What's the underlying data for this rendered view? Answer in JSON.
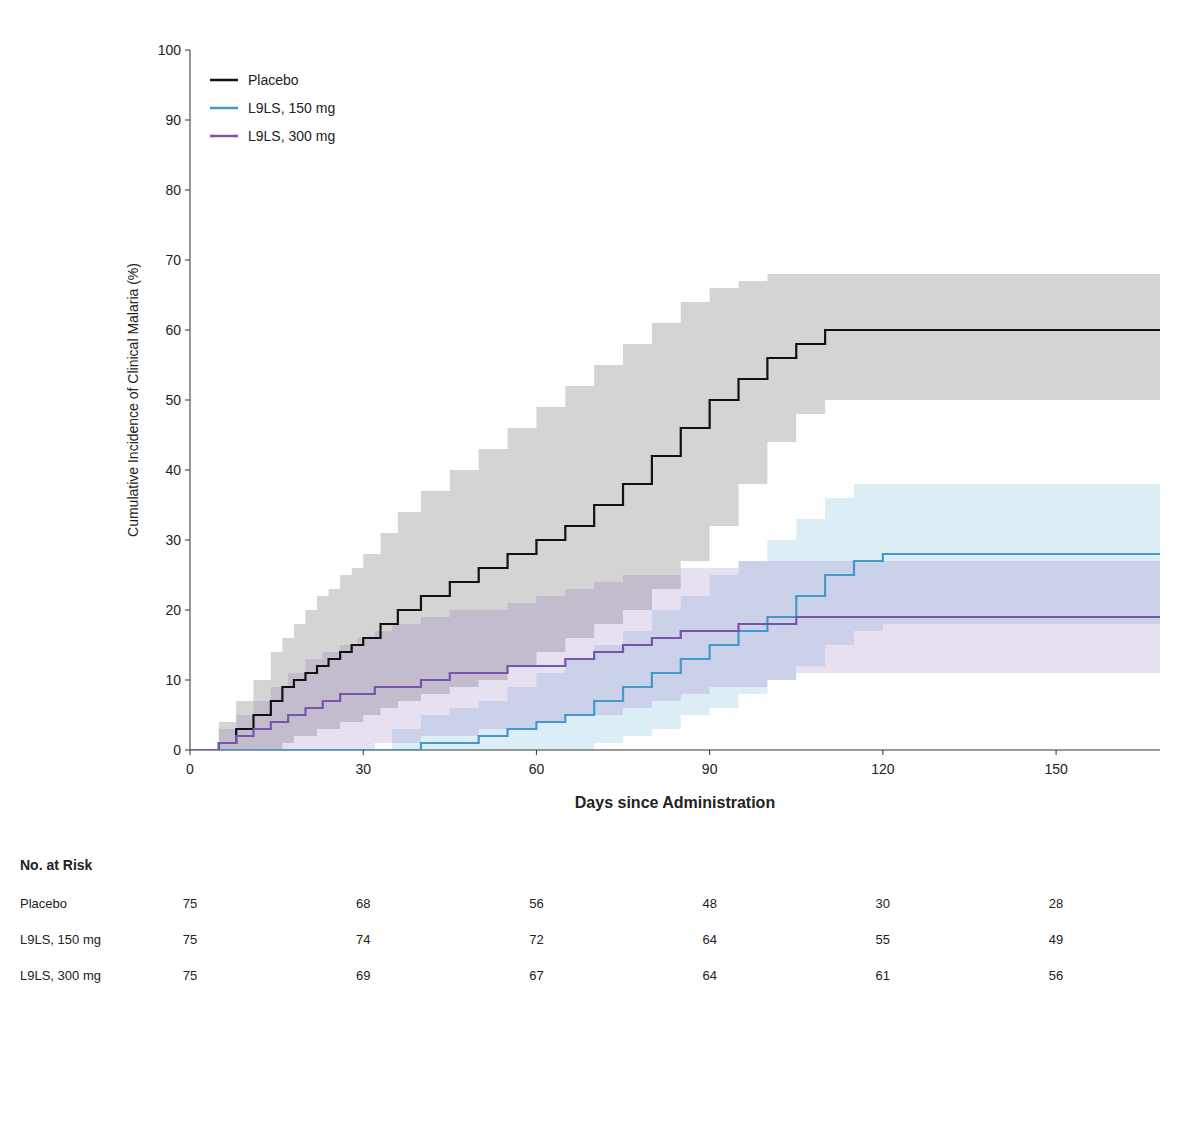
{
  "chart_data": {
    "type": "step",
    "xlabel": "Days since Administration",
    "ylabel": "Cumulative Incidence of Clinical Malaria (%)",
    "xlim": [
      0,
      168
    ],
    "ylim": [
      0,
      100
    ],
    "xticks": [
      0,
      30,
      60,
      90,
      120,
      150
    ],
    "yticks": [
      0,
      10,
      20,
      30,
      40,
      50,
      60,
      70,
      80,
      90,
      100
    ],
    "grid": false,
    "legend": "upper left",
    "series": [
      {
        "name": "Placebo",
        "color": "#111111",
        "x": [
          0,
          5,
          8,
          11,
          14,
          16,
          18,
          20,
          22,
          24,
          26,
          28,
          30,
          33,
          36,
          40,
          45,
          50,
          55,
          60,
          65,
          70,
          75,
          80,
          85,
          90,
          95,
          100,
          105,
          110,
          115,
          120,
          168
        ],
        "values": [
          0,
          1,
          3,
          5,
          7,
          9,
          10,
          11,
          12,
          13,
          14,
          15,
          16,
          18,
          20,
          22,
          24,
          26,
          28,
          30,
          32,
          35,
          38,
          42,
          46,
          50,
          53,
          56,
          58,
          60,
          60,
          60,
          60
        ],
        "upper": [
          0,
          4,
          7,
          10,
          14,
          16,
          18,
          20,
          22,
          23,
          25,
          26,
          28,
          31,
          34,
          37,
          40,
          43,
          46,
          49,
          52,
          55,
          58,
          61,
          64,
          66,
          67,
          68,
          68,
          68,
          68,
          68,
          68
        ],
        "lower": [
          0,
          0,
          0,
          0,
          0,
          1,
          2,
          2,
          3,
          3,
          4,
          4,
          5,
          6,
          7,
          8,
          9,
          10,
          12,
          14,
          16,
          18,
          20,
          23,
          27,
          32,
          38,
          44,
          48,
          50,
          50,
          50,
          48
        ]
      },
      {
        "name": "L9LS, 150 mg",
        "color": "#4499cc",
        "x": [
          0,
          30,
          35,
          40,
          45,
          50,
          55,
          60,
          65,
          70,
          75,
          80,
          85,
          90,
          95,
          100,
          105,
          110,
          115,
          120,
          168
        ],
        "values": [
          0,
          0,
          0,
          1,
          1,
          2,
          3,
          4,
          5,
          7,
          9,
          11,
          13,
          15,
          17,
          19,
          22,
          25,
          27,
          28,
          28
        ],
        "upper": [
          0,
          0,
          3,
          5,
          6,
          7,
          9,
          11,
          13,
          15,
          17,
          20,
          22,
          25,
          27,
          30,
          33,
          36,
          38,
          38,
          38
        ],
        "lower": [
          0,
          0,
          0,
          0,
          0,
          0,
          0,
          0,
          0,
          1,
          2,
          3,
          5,
          6,
          8,
          10,
          12,
          15,
          17,
          18,
          18
        ]
      },
      {
        "name": "L9LS, 300 mg",
        "color": "#7755aa",
        "x": [
          0,
          5,
          8,
          11,
          14,
          17,
          20,
          23,
          26,
          29,
          32,
          35,
          40,
          45,
          50,
          55,
          60,
          65,
          70,
          75,
          80,
          85,
          90,
          95,
          100,
          105,
          110,
          115,
          120,
          168
        ],
        "values": [
          0,
          1,
          2,
          3,
          4,
          5,
          6,
          7,
          8,
          8,
          9,
          9,
          10,
          11,
          11,
          12,
          12,
          13,
          14,
          15,
          16,
          17,
          17,
          18,
          18,
          19,
          19,
          19,
          19,
          19
        ],
        "upper": [
          0,
          3,
          5,
          7,
          9,
          11,
          13,
          14,
          15,
          16,
          17,
          18,
          19,
          20,
          20,
          21,
          22,
          23,
          24,
          25,
          25,
          26,
          26,
          27,
          27,
          27,
          27,
          27,
          27,
          27
        ],
        "lower": [
          0,
          0,
          0,
          0,
          0,
          0,
          0,
          0,
          0,
          0,
          1,
          1,
          2,
          2,
          3,
          3,
          4,
          5,
          5,
          6,
          7,
          8,
          9,
          9,
          10,
          11,
          11,
          11,
          11,
          11
        ]
      }
    ],
    "risk_table": {
      "title": "No. at Risk",
      "x": [
        0,
        30,
        60,
        90,
        120,
        150
      ],
      "rows": [
        {
          "name": "Placebo",
          "values": [
            75,
            68,
            56,
            48,
            30,
            28
          ]
        },
        {
          "name": "L9LS, 150 mg",
          "values": [
            75,
            74,
            72,
            64,
            55,
            49
          ]
        },
        {
          "name": "L9LS, 300 mg",
          "values": [
            75,
            69,
            67,
            64,
            61,
            56
          ]
        }
      ]
    }
  }
}
